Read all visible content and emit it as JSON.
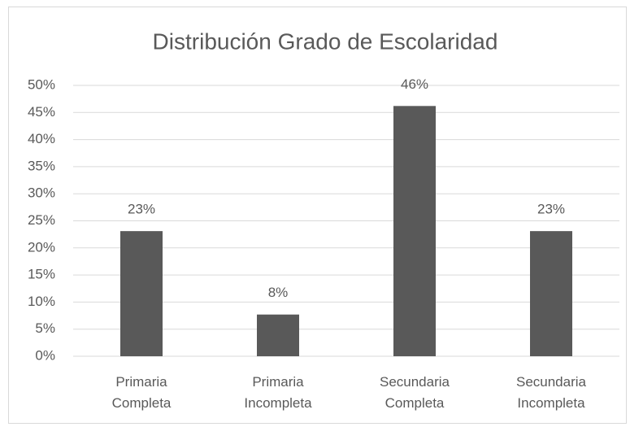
{
  "chart_data": {
    "type": "bar",
    "title": "Distribución Grado de Escolaridad",
    "categories": [
      "Primaria Completa",
      "Primaria Incompleta",
      "Secundaria Completa",
      "Secundaria Incompleta"
    ],
    "values": [
      23.1,
      7.7,
      46.2,
      23.1
    ],
    "value_labels": [
      "23%",
      "8%",
      "46%",
      "23%"
    ],
    "color": "#595959",
    "ylim": [
      0,
      50
    ],
    "yticks": [
      {
        "value": 0,
        "label": "0%"
      },
      {
        "value": 5,
        "label": "5%"
      },
      {
        "value": 10,
        "label": "10%"
      },
      {
        "value": 15,
        "label": "15%"
      },
      {
        "value": 20,
        "label": "20%"
      },
      {
        "value": 25,
        "label": "25%"
      },
      {
        "value": 30,
        "label": "30%"
      },
      {
        "value": 35,
        "label": "35%"
      },
      {
        "value": 40,
        "label": "40%"
      },
      {
        "value": 45,
        "label": "45%"
      },
      {
        "value": 50,
        "label": "50%"
      }
    ],
    "grid": true
  }
}
